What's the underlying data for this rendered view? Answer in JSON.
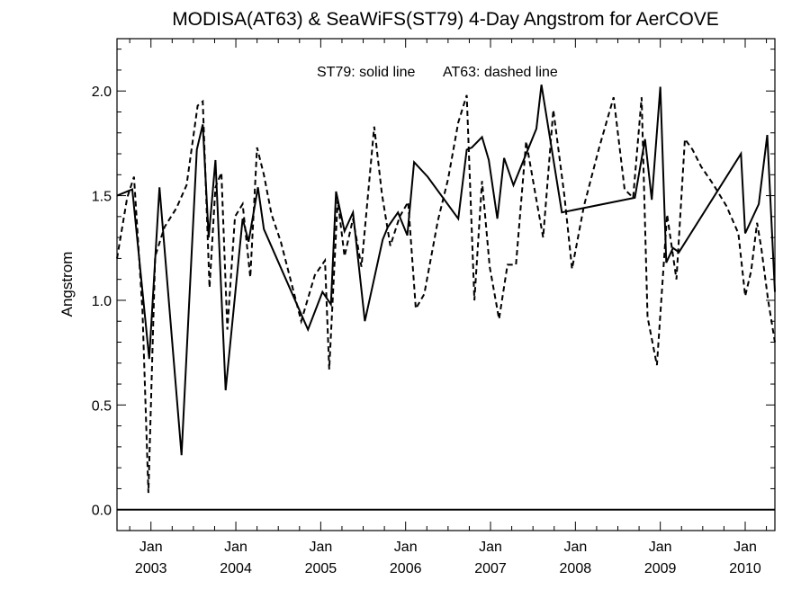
{
  "chart_data": {
    "type": "line",
    "title": "MODISA(AT63) & SeaWiFS(ST79) 4-Day Angstrom for AerCOVE",
    "ylabel": "Angstrom",
    "xlabel": "",
    "annotation_solid": "ST79: solid line",
    "annotation_dashed": "AT63: dashed line",
    "xlim": [
      2002.6,
      2010.35
    ],
    "ylim": [
      -0.1,
      2.25
    ],
    "grid": false,
    "y_ticks": [
      0.0,
      0.5,
      1.0,
      1.5,
      2.0
    ],
    "y_tick_labels": [
      "0.0",
      "0.5",
      "1.0",
      "1.5",
      "2.0"
    ],
    "x_ticks": [
      2003.0,
      2004.0,
      2005.0,
      2006.0,
      2007.0,
      2008.0,
      2009.0,
      2010.0
    ],
    "x_tick_month": "Jan",
    "x_tick_years": [
      "2003",
      "2004",
      "2005",
      "2006",
      "2007",
      "2008",
      "2009",
      "2010"
    ],
    "zero_line": 0.0,
    "series": [
      {
        "name": "ST79",
        "style": "solid",
        "color": "#000000",
        "x": [
          2002.6,
          2002.78,
          2002.98,
          2003.1,
          2003.36,
          2003.54,
          2003.61,
          2003.68,
          2003.76,
          2003.88,
          2004.08,
          2004.15,
          2004.26,
          2004.33,
          2004.85,
          2005.02,
          2005.12,
          2005.18,
          2005.28,
          2005.38,
          2005.52,
          2005.73,
          2005.79,
          2005.91,
          2006.02,
          2006.1,
          2006.26,
          2006.62,
          2006.72,
          2006.78,
          2006.9,
          2006.98,
          2007.08,
          2007.16,
          2007.27,
          2007.54,
          2007.6,
          2007.84,
          2008.7,
          2008.82,
          2008.9,
          2009.0,
          2009.07,
          2009.15,
          2009.22,
          2009.95,
          2010.0,
          2010.16,
          2010.26,
          2010.35
        ],
        "y": [
          1.5,
          1.53,
          0.72,
          1.54,
          0.26,
          1.72,
          1.84,
          1.3,
          1.67,
          0.57,
          1.39,
          1.28,
          1.54,
          1.34,
          0.86,
          1.04,
          0.98,
          1.52,
          1.33,
          1.42,
          0.9,
          1.29,
          1.35,
          1.42,
          1.31,
          1.66,
          1.59,
          1.39,
          1.72,
          1.73,
          1.78,
          1.67,
          1.39,
          1.68,
          1.55,
          1.82,
          2.03,
          1.42,
          1.49,
          1.77,
          1.48,
          2.02,
          1.18,
          1.25,
          1.23,
          1.7,
          1.32,
          1.46,
          1.79,
          1.04
        ]
      },
      {
        "name": "AT63",
        "style": "dashed",
        "color": "#000000",
        "x": [
          2002.6,
          2002.72,
          2002.8,
          2002.9,
          2002.97,
          2003.05,
          2003.16,
          2003.3,
          2003.42,
          2003.55,
          2003.61,
          2003.69,
          2003.76,
          2003.83,
          2003.9,
          2003.99,
          2004.08,
          2004.17,
          2004.25,
          2004.33,
          2004.42,
          2004.53,
          2004.77,
          2004.93,
          2005.05,
          2005.1,
          2005.2,
          2005.28,
          2005.38,
          2005.48,
          2005.63,
          2005.72,
          2005.82,
          2005.93,
          2006.03,
          2006.12,
          2006.22,
          2006.38,
          2006.5,
          2006.62,
          2006.72,
          2006.81,
          2006.9,
          2006.99,
          2007.1,
          2007.2,
          2007.3,
          2007.42,
          2007.54,
          2007.62,
          2007.74,
          2007.87,
          2007.96,
          2008.1,
          2008.28,
          2008.45,
          2008.58,
          2008.68,
          2008.78,
          2008.85,
          2008.96,
          2009.08,
          2009.19,
          2009.29,
          2009.38,
          2009.48,
          2009.63,
          2009.78,
          2009.92,
          2010.0,
          2010.07,
          2010.14,
          2010.19,
          2010.27,
          2010.35
        ],
        "y": [
          1.2,
          1.49,
          1.59,
          0.95,
          0.08,
          1.21,
          1.35,
          1.44,
          1.55,
          1.93,
          1.95,
          1.06,
          1.54,
          1.61,
          0.86,
          1.4,
          1.46,
          1.11,
          1.73,
          1.6,
          1.41,
          1.28,
          0.9,
          1.12,
          1.19,
          0.67,
          1.48,
          1.21,
          1.39,
          1.16,
          1.83,
          1.51,
          1.26,
          1.4,
          1.47,
          0.96,
          1.03,
          1.38,
          1.58,
          1.85,
          1.98,
          1.0,
          1.57,
          1.16,
          0.91,
          1.17,
          1.17,
          1.76,
          1.48,
          1.3,
          1.91,
          1.5,
          1.15,
          1.45,
          1.73,
          1.97,
          1.53,
          1.49,
          1.97,
          0.92,
          0.69,
          1.41,
          1.1,
          1.77,
          1.72,
          1.64,
          1.55,
          1.45,
          1.32,
          1.02,
          1.14,
          1.37,
          1.25,
          1.0,
          0.8
        ]
      }
    ]
  }
}
